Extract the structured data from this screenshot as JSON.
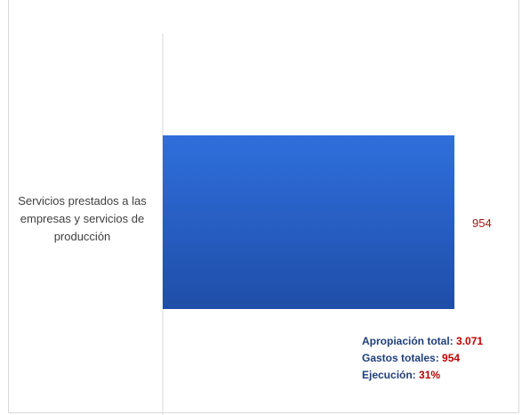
{
  "chart_data": {
    "type": "bar",
    "orientation": "horizontal",
    "categories": [
      "Servicios prestados a las empresas y servicios de producción"
    ],
    "values": [
      954
    ],
    "value_labels": [
      "954"
    ],
    "bar_color": "#2e63c8",
    "value_label_color": "#a21616",
    "grid": false,
    "xlim": [
      0,
      954
    ],
    "summary": {
      "apropiacion_label": "Apropiación total:",
      "apropiacion_value": "3.071",
      "gastos_label": "Gastos totales:",
      "gastos_value": "954",
      "ejecucion_label": "Ejecución:",
      "ejecucion_value": "31%"
    }
  }
}
